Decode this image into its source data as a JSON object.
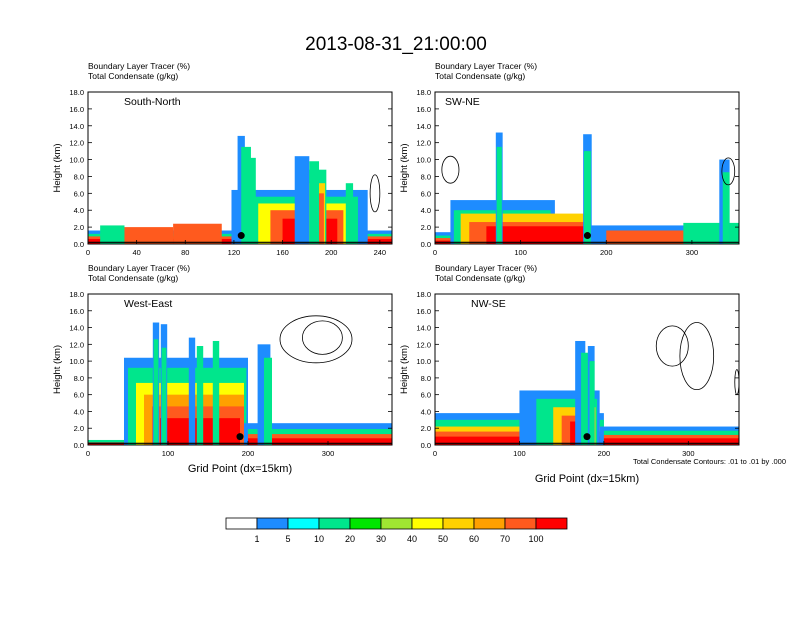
{
  "figure": {
    "title": "2013-08-31_21:00:00",
    "x_axis_label": "Grid Point (dx=15km)",
    "contour_note": "Total Condensate Contours: .01 to .01 by .000"
  },
  "colorbar": {
    "colors": [
      "#ffffff",
      "#1e8cff",
      "#00ffff",
      "#00e68c",
      "#00e600",
      "#a0e632",
      "#ffff00",
      "#ffd200",
      "#ffa000",
      "#ff5a1e",
      "#ff0000"
    ],
    "labels": [
      "1",
      "5",
      "10",
      "20",
      "30",
      "40",
      "50",
      "60",
      "70",
      "100"
    ]
  },
  "chart_data": [
    {
      "type": "heatmap",
      "name": "South-North",
      "title_lines": [
        "Boundary Layer Tracer    (%)",
        "Total Condensate    (g/kg)"
      ],
      "ylabel": "Height (km)",
      "xlim": [
        0,
        250
      ],
      "ylim": [
        0,
        18
      ],
      "xticks": [
        0,
        40,
        80,
        120,
        160,
        200,
        240
      ],
      "yticks": [
        "0.0",
        "2.0",
        "4.0",
        "6.0",
        "8.0",
        "10.0",
        "12.0",
        "14.0",
        "16.0",
        "18.0"
      ],
      "marker_x": 126
    },
    {
      "type": "heatmap",
      "name": "SW-NE",
      "title_lines": [
        "Boundary Layer Tracer    (%)",
        "Total Condensate    (g/kg)"
      ],
      "ylabel": "Height (km)",
      "xlim": [
        0,
        355
      ],
      "ylim": [
        0,
        18
      ],
      "xticks": [
        0,
        100,
        200,
        300
      ],
      "yticks": [
        "0.0",
        "2.0",
        "4.0",
        "6.0",
        "8.0",
        "10.0",
        "12.0",
        "14.0",
        "16.0",
        "18.0"
      ],
      "marker_x": 178
    },
    {
      "type": "heatmap",
      "name": "West-East",
      "title_lines": [
        "Boundary Layer Tracer    (%)",
        "Total Condensate    (g/kg)"
      ],
      "ylabel": "Height (km)",
      "xlim": [
        0,
        380
      ],
      "ylim": [
        0,
        18
      ],
      "xticks": [
        0,
        100,
        200,
        300
      ],
      "yticks": [
        "0.0",
        "2.0",
        "4.0",
        "6.0",
        "8.0",
        "10.0",
        "12.0",
        "14.0",
        "16.0",
        "18.0"
      ],
      "marker_x": 190
    },
    {
      "type": "heatmap",
      "name": "NW-SE",
      "title_lines": [
        "Boundary Layer Tracer    (%)",
        "Total Condensate    (g/kg)"
      ],
      "ylabel": "Height (km)",
      "xlim": [
        0,
        360
      ],
      "ylim": [
        0,
        18
      ],
      "xticks": [
        0,
        100,
        200,
        300
      ],
      "yticks": [
        "0.0",
        "2.0",
        "4.0",
        "6.0",
        "8.0",
        "10.0",
        "12.0",
        "14.0",
        "16.0",
        "18.0"
      ],
      "marker_x": 180
    }
  ]
}
